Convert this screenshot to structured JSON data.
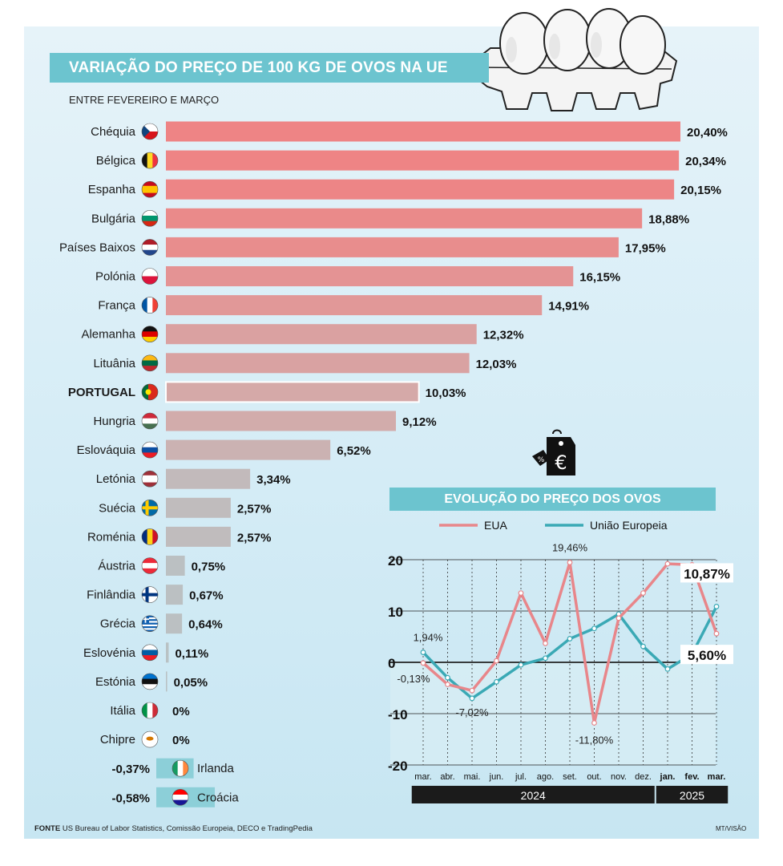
{
  "title": "VARIAÇÃO DO PREÇO DE 100 KG DE OVOS NA UE",
  "subtitle": "ENTRE FEVEREIRO E MARÇO",
  "chart_data": [
    {
      "type": "bar",
      "orientation": "horizontal",
      "title": "VARIAÇÃO DO PREÇO DE 100 KG DE OVOS NA UE",
      "subtitle": "ENTRE FEVEREIRO E MARÇO",
      "categories": [
        "Chéquia",
        "Bélgica",
        "Espanha",
        "Bulgária",
        "Países Baixos",
        "Polónia",
        "França",
        "Alemanha",
        "Lituânia",
        "PORTUGAL",
        "Hungria",
        "Eslováquia",
        "Letónia",
        "Suécia",
        "Roménia",
        "Áustria",
        "Finlândia",
        "Grécia",
        "Eslovénia",
        "Estónia",
        "Itália",
        "Chipre",
        "Irlanda",
        "Croácia"
      ],
      "values": [
        20.4,
        20.34,
        20.15,
        18.88,
        17.95,
        16.15,
        14.91,
        12.32,
        12.03,
        10.03,
        9.12,
        6.52,
        3.34,
        2.57,
        2.57,
        0.75,
        0.67,
        0.64,
        0.11,
        0.05,
        0,
        0,
        -0.37,
        -0.58
      ],
      "value_labels": [
        "20,40%",
        "20,34%",
        "20,15%",
        "18,88%",
        "17,95%",
        "16,15%",
        "14,91%",
        "12,32%",
        "12,03%",
        "10,03%",
        "9,12%",
        "6,52%",
        "3,34%",
        "2,57%",
        "2,57%",
        "0,75%",
        "0,67%",
        "0,64%",
        "0,11%",
        "0,05%",
        "0%",
        "0%",
        "-0,37%",
        "-0,58%"
      ],
      "highlight": "PORTUGAL",
      "grid": false
    },
    {
      "type": "line",
      "title": "EVOLUÇÃO DO PREÇO DOS OVOS",
      "x": [
        "mar.",
        "abr.",
        "mai.",
        "jun.",
        "jul.",
        "ago.",
        "set.",
        "out.",
        "nov.",
        "dez.",
        "jan.",
        "fev.",
        "mar."
      ],
      "year_labels": [
        {
          "label": "2024",
          "from": 0,
          "to": 9
        },
        {
          "label": "2025",
          "from": 10,
          "to": 12
        }
      ],
      "ylim": [
        -20,
        20
      ],
      "yticks": [
        20,
        10,
        0,
        -10,
        -20
      ],
      "series": [
        {
          "name": "EUA",
          "color": "#e8868a",
          "values": [
            -0.13,
            -4.3,
            -5.5,
            0.3,
            13.5,
            3.7,
            19.46,
            -11.8,
            8.6,
            13.5,
            19.2,
            19.0,
            5.6
          ]
        },
        {
          "name": "União Europeia",
          "color": "#3aa9b5",
          "values": [
            1.94,
            -3.0,
            -7.02,
            -3.8,
            -0.5,
            0.8,
            4.6,
            6.6,
            9.4,
            3.1,
            -1.3,
            1.6,
            10.87
          ]
        }
      ],
      "annotations": [
        {
          "text": "1,94%",
          "series": 1,
          "index": 0
        },
        {
          "text": "-0,13%",
          "series": 0,
          "index": 0
        },
        {
          "text": "-7,02%",
          "series": 1,
          "index": 2
        },
        {
          "text": "19,46%",
          "series": 0,
          "index": 6
        },
        {
          "text": "-11,80%",
          "series": 0,
          "index": 7
        },
        {
          "text": "10,87%",
          "series": 1,
          "index": 12,
          "boxed": true
        },
        {
          "text": "5,60%",
          "series": 0,
          "index": 12,
          "boxed": true
        }
      ],
      "legend": "top",
      "grid": true
    }
  ],
  "colors": {
    "accent": "#6cc4cf",
    "bar_top": "#ee8485",
    "bar_mid": "#d5a9a8",
    "bar_low": "#b9c2c4",
    "bar_negative": "#8ccfd8",
    "eua": "#e8868a",
    "ue": "#3aa9b5",
    "dark_band": "#1b1b1b"
  },
  "icons": [
    "egg-carton-illustration",
    "price-tag-euro-icon",
    "country-flag-icons"
  ],
  "footer": {
    "source_label": "FONTE",
    "source_text": "US Bureau of Labor Statistics, Comissão Europeia, DECO e TradingPedia",
    "credit": "MT/VISÃO"
  }
}
